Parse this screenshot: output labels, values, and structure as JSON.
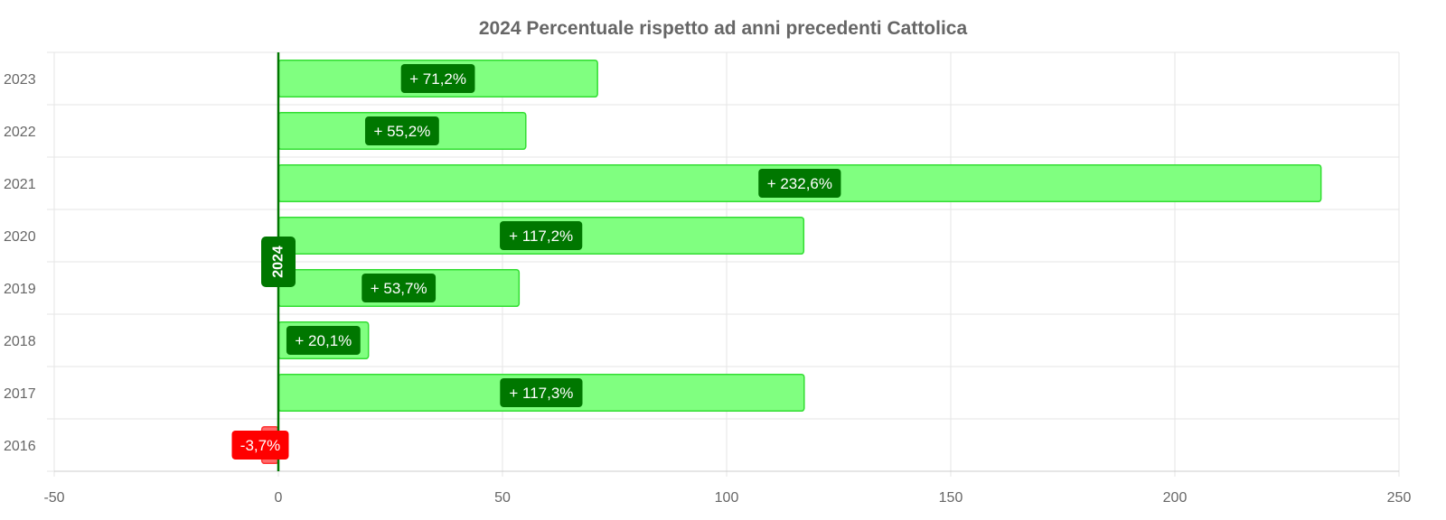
{
  "chart_data": {
    "type": "bar",
    "orientation": "horizontal",
    "title": "2024 Percentuale rispetto ad anni precedenti Cattolica",
    "xlabel": "",
    "ylabel": "",
    "categories": [
      "2023",
      "2022",
      "2021",
      "2020",
      "2019",
      "2018",
      "2017",
      "2016"
    ],
    "values": [
      71.2,
      55.2,
      232.6,
      117.2,
      53.7,
      20.1,
      117.3,
      -3.7
    ],
    "data_labels": [
      "+ 71,2%",
      "+ 55,2%",
      "+ 232,6%",
      "+ 117,2%",
      "+ 53,7%",
      "+ 20,1%",
      "+ 117,3%",
      "-3,7%"
    ],
    "xlim": [
      -50,
      250
    ],
    "x_ticks": [
      "-50",
      "0",
      "50",
      "100",
      "150",
      "200",
      "250"
    ],
    "x_tick_values": [
      -50,
      0,
      50,
      100,
      150,
      200,
      250
    ],
    "grid": true,
    "legend": "none",
    "reference_line": {
      "value": 0,
      "label": "2024",
      "color": "#007700"
    },
    "colors": {
      "positive_fill": "#80ff80",
      "positive_stroke": "#33dd33",
      "positive_label_bg": "#007700",
      "negative_fill": "#ff6b6b",
      "negative_stroke": "#ff3333",
      "negative_label_bg": "#ff0000",
      "text": "#666666"
    }
  }
}
